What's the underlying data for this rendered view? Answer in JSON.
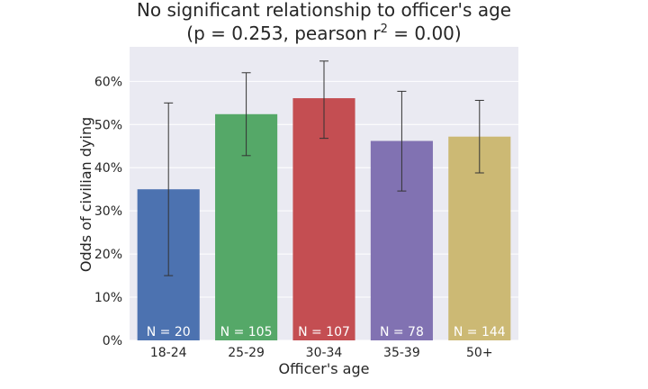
{
  "chart_data": {
    "type": "bar",
    "title_line1": "No significant relationship to officer's age",
    "title_line2_pre": "(p = 0.253, pearson r",
    "title_line2_sup": "2",
    "title_line2_post": " = 0.00)",
    "xlabel": "Officer's age",
    "ylabel": "Odds of civilian dying",
    "categories": [
      "18-24",
      "25-29",
      "30-34",
      "35-39",
      "50+"
    ],
    "values": [
      35.0,
      52.4,
      56.1,
      46.2,
      47.2
    ],
    "error_low": [
      15.0,
      42.8,
      46.8,
      34.6,
      38.8
    ],
    "error_high": [
      55.0,
      62.0,
      64.7,
      57.7,
      55.6
    ],
    "n_labels": [
      "N = 20",
      "N = 105",
      "N = 107",
      "N = 78",
      "N = 144"
    ],
    "colors": [
      "#4c72b0",
      "#55a868",
      "#c44e52",
      "#8172b2",
      "#ccb974"
    ],
    "ylim": [
      0,
      68
    ],
    "yticks": [
      0,
      10,
      20,
      30,
      40,
      50,
      60
    ],
    "ytick_labels": [
      "0%",
      "10%",
      "20%",
      "30%",
      "40%",
      "50%",
      "60%"
    ],
    "grid": true,
    "background": "#eaeaf2",
    "errorbar_color": "#333333"
  }
}
